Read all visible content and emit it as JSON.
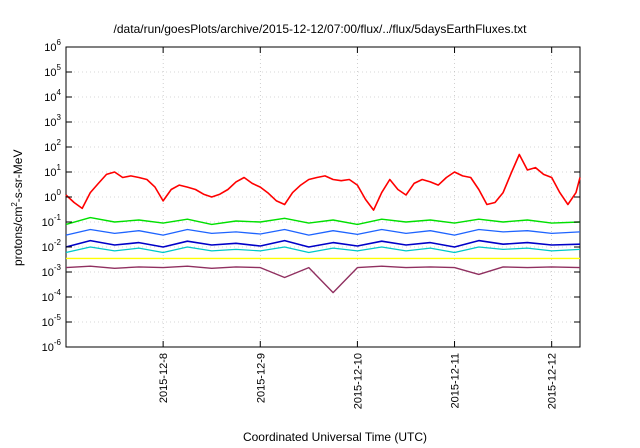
{
  "chart_data": {
    "type": "line",
    "title": "/data/run/goesPlots/archive/2015-12-12/07:00/flux/../flux/5daysEarthFluxes.txt",
    "xlabel": "Coordinated Universal Time (UTC)",
    "ylabel_prefix": "protons/cm",
    "ylabel_sup": "2",
    "ylabel_suffix": "-s-sr-MeV",
    "yscale": "log",
    "ylim": [
      1e-06,
      1000000.0
    ],
    "xlim": [
      "2015-12-07T00:00",
      "2015-12-12T07:00"
    ],
    "y_ticks": [
      {
        "value": 1e-06,
        "base": "10",
        "exp": "-6"
      },
      {
        "value": 1e-05,
        "base": "10",
        "exp": "-5"
      },
      {
        "value": 0.0001,
        "base": "10",
        "exp": "-4"
      },
      {
        "value": 0.001,
        "base": "10",
        "exp": "-3"
      },
      {
        "value": 0.01,
        "base": "10",
        "exp": "-2"
      },
      {
        "value": 0.1,
        "base": "10",
        "exp": "-1"
      },
      {
        "value": 1,
        "base": "10",
        "exp": "0"
      },
      {
        "value": 10,
        "base": "10",
        "exp": "1"
      },
      {
        "value": 100,
        "base": "10",
        "exp": "2"
      },
      {
        "value": 1000.0,
        "base": "10",
        "exp": "3"
      },
      {
        "value": 10000.0,
        "base": "10",
        "exp": "4"
      },
      {
        "value": 100000.0,
        "base": "10",
        "exp": "5"
      },
      {
        "value": 1000000.0,
        "base": "10",
        "exp": "6"
      }
    ],
    "x_ticks": [
      {
        "value": "2015-12-08T00:00",
        "label": "2015-12-8"
      },
      {
        "value": "2015-12-09T00:00",
        "label": "2015-12-9"
      },
      {
        "value": "2015-12-10T00:00",
        "label": "2015-12-10"
      },
      {
        "value": "2015-12-11T00:00",
        "label": "2015-12-11"
      },
      {
        "value": "2015-12-12T00:00",
        "label": "2015-12-12"
      }
    ],
    "grid": true,
    "series": [
      {
        "color": "#ff0000",
        "width": 1.6,
        "x": [
          "2015-12-07T00:00",
          "2015-12-07T02:00",
          "2015-12-07T04:00",
          "2015-12-07T06:00",
          "2015-12-07T08:00",
          "2015-12-07T10:00",
          "2015-12-07T12:00",
          "2015-12-07T14:00",
          "2015-12-07T16:00",
          "2015-12-07T18:00",
          "2015-12-07T20:00",
          "2015-12-07T22:00",
          "2015-12-08T00:00",
          "2015-12-08T02:00",
          "2015-12-08T04:00",
          "2015-12-08T06:00",
          "2015-12-08T08:00",
          "2015-12-08T10:00",
          "2015-12-08T12:00",
          "2015-12-08T14:00",
          "2015-12-08T16:00",
          "2015-12-08T18:00",
          "2015-12-08T20:00",
          "2015-12-08T22:00",
          "2015-12-09T00:00",
          "2015-12-09T02:00",
          "2015-12-09T04:00",
          "2015-12-09T06:00",
          "2015-12-09T08:00",
          "2015-12-09T10:00",
          "2015-12-09T12:00",
          "2015-12-09T14:00",
          "2015-12-09T16:00",
          "2015-12-09T18:00",
          "2015-12-09T20:00",
          "2015-12-09T22:00",
          "2015-12-10T00:00",
          "2015-12-10T02:00",
          "2015-12-10T04:00",
          "2015-12-10T06:00",
          "2015-12-10T08:00",
          "2015-12-10T10:00",
          "2015-12-10T12:00",
          "2015-12-10T14:00",
          "2015-12-10T16:00",
          "2015-12-10T18:00",
          "2015-12-10T20:00",
          "2015-12-10T22:00",
          "2015-12-11T00:00",
          "2015-12-11T02:00",
          "2015-12-11T04:00",
          "2015-12-11T06:00",
          "2015-12-11T08:00",
          "2015-12-11T10:00",
          "2015-12-11T12:00",
          "2015-12-11T14:00",
          "2015-12-11T16:00",
          "2015-12-11T18:00",
          "2015-12-11T20:00",
          "2015-12-11T22:00",
          "2015-12-12T00:00",
          "2015-12-12T02:00",
          "2015-12-12T04:00",
          "2015-12-12T06:00",
          "2015-12-12T07:00"
        ],
        "y": [
          1.2,
          0.6,
          0.35,
          1.5,
          3.5,
          8,
          10,
          6,
          7,
          6,
          5,
          2.5,
          0.7,
          2,
          3,
          2.5,
          2,
          1.3,
          1,
          1.3,
          2,
          4,
          6,
          3.5,
          2.5,
          1.4,
          0.7,
          0.5,
          1.5,
          3,
          5,
          6,
          7,
          5,
          4.5,
          5,
          3,
          0.8,
          0.3,
          1.5,
          5,
          2,
          1.2,
          3.5,
          5,
          4,
          3,
          6,
          10,
          7,
          6,
          2,
          0.5,
          0.6,
          1.5,
          9,
          50,
          12,
          15,
          8,
          6,
          1.5,
          0.5,
          1.5,
          6
        ]
      },
      {
        "color": "#00e000",
        "width": 1.4,
        "x": [
          "2015-12-07T00:00",
          "2015-12-07T06:00",
          "2015-12-07T12:00",
          "2015-12-07T18:00",
          "2015-12-08T00:00",
          "2015-12-08T06:00",
          "2015-12-08T12:00",
          "2015-12-08T18:00",
          "2015-12-09T00:00",
          "2015-12-09T06:00",
          "2015-12-09T12:00",
          "2015-12-09T18:00",
          "2015-12-10T00:00",
          "2015-12-10T06:00",
          "2015-12-10T12:00",
          "2015-12-10T18:00",
          "2015-12-11T00:00",
          "2015-12-11T06:00",
          "2015-12-11T12:00",
          "2015-12-11T18:00",
          "2015-12-12T00:00",
          "2015-12-12T07:00"
        ],
        "y": [
          0.08,
          0.15,
          0.1,
          0.12,
          0.09,
          0.13,
          0.08,
          0.11,
          0.1,
          0.14,
          0.09,
          0.12,
          0.08,
          0.13,
          0.1,
          0.12,
          0.09,
          0.13,
          0.1,
          0.12,
          0.09,
          0.1
        ]
      },
      {
        "color": "#00c8c8",
        "width": 1.2,
        "x": [
          "2015-12-07T00:00",
          "2015-12-07T06:00",
          "2015-12-07T12:00",
          "2015-12-07T18:00",
          "2015-12-08T00:00",
          "2015-12-08T06:00",
          "2015-12-08T12:00",
          "2015-12-08T18:00",
          "2015-12-09T00:00",
          "2015-12-09T06:00",
          "2015-12-09T12:00",
          "2015-12-09T18:00",
          "2015-12-10T00:00",
          "2015-12-10T06:00",
          "2015-12-10T12:00",
          "2015-12-10T18:00",
          "2015-12-11T00:00",
          "2015-12-11T06:00",
          "2015-12-11T12:00",
          "2015-12-11T18:00",
          "2015-12-12T00:00",
          "2015-12-12T07:00"
        ],
        "y": [
          0.006,
          0.01,
          0.007,
          0.009,
          0.006,
          0.01,
          0.007,
          0.008,
          0.007,
          0.01,
          0.006,
          0.009,
          0.007,
          0.01,
          0.007,
          0.009,
          0.006,
          0.01,
          0.008,
          0.009,
          0.007,
          0.008
        ]
      },
      {
        "color": "#1e64ff",
        "width": 1.3,
        "x": [
          "2015-12-07T00:00",
          "2015-12-07T06:00",
          "2015-12-07T12:00",
          "2015-12-07T18:00",
          "2015-12-08T00:00",
          "2015-12-08T06:00",
          "2015-12-08T12:00",
          "2015-12-08T18:00",
          "2015-12-09T00:00",
          "2015-12-09T06:00",
          "2015-12-09T12:00",
          "2015-12-09T18:00",
          "2015-12-10T00:00",
          "2015-12-10T06:00",
          "2015-12-10T12:00",
          "2015-12-10T18:00",
          "2015-12-11T00:00",
          "2015-12-11T06:00",
          "2015-12-11T12:00",
          "2015-12-11T18:00",
          "2015-12-12T00:00",
          "2015-12-12T07:00"
        ],
        "y": [
          0.03,
          0.05,
          0.035,
          0.045,
          0.03,
          0.05,
          0.035,
          0.04,
          0.033,
          0.05,
          0.03,
          0.045,
          0.032,
          0.05,
          0.035,
          0.045,
          0.03,
          0.05,
          0.04,
          0.045,
          0.035,
          0.04
        ]
      },
      {
        "color": "#0000c8",
        "width": 1.6,
        "x": [
          "2015-12-07T00:00",
          "2015-12-07T06:00",
          "2015-12-07T12:00",
          "2015-12-07T18:00",
          "2015-12-08T00:00",
          "2015-12-08T06:00",
          "2015-12-08T12:00",
          "2015-12-08T18:00",
          "2015-12-09T00:00",
          "2015-12-09T06:00",
          "2015-12-09T12:00",
          "2015-12-09T18:00",
          "2015-12-10T00:00",
          "2015-12-10T06:00",
          "2015-12-10T12:00",
          "2015-12-10T18:00",
          "2015-12-11T00:00",
          "2015-12-11T06:00",
          "2015-12-11T12:00",
          "2015-12-11T18:00",
          "2015-12-12T00:00",
          "2015-12-12T07:00"
        ],
        "y": [
          0.01,
          0.018,
          0.012,
          0.015,
          0.01,
          0.017,
          0.012,
          0.014,
          0.011,
          0.018,
          0.01,
          0.015,
          0.011,
          0.017,
          0.012,
          0.015,
          0.01,
          0.018,
          0.013,
          0.015,
          0.012,
          0.013
        ]
      },
      {
        "color": "#ffff00",
        "width": 1.4,
        "x": [
          "2015-12-07T00:00",
          "2015-12-08T00:00",
          "2015-12-09T00:00",
          "2015-12-10T00:00",
          "2015-12-11T00:00",
          "2015-12-12T00:00",
          "2015-12-12T07:00"
        ],
        "y": [
          0.0035,
          0.0035,
          0.0035,
          0.0035,
          0.0035,
          0.0035,
          0.0035
        ]
      },
      {
        "color": "#903060",
        "width": 1.4,
        "x": [
          "2015-12-07T00:00",
          "2015-12-07T06:00",
          "2015-12-07T12:00",
          "2015-12-07T18:00",
          "2015-12-08T00:00",
          "2015-12-08T06:00",
          "2015-12-08T12:00",
          "2015-12-08T18:00",
          "2015-12-09T00:00",
          "2015-12-09T06:00",
          "2015-12-09T12:00",
          "2015-12-09T18:00",
          "2015-12-10T00:00",
          "2015-12-10T06:00",
          "2015-12-10T12:00",
          "2015-12-10T18:00",
          "2015-12-11T00:00",
          "2015-12-11T06:00",
          "2015-12-11T12:00",
          "2015-12-11T18:00",
          "2015-12-12T00:00",
          "2015-12-12T07:00"
        ],
        "y": [
          0.0015,
          0.0017,
          0.0014,
          0.0016,
          0.0015,
          0.0017,
          0.0014,
          0.0016,
          0.0015,
          0.0006,
          0.0015,
          0.00015,
          0.0015,
          0.0017,
          0.0015,
          0.0016,
          0.0015,
          0.0008,
          0.0016,
          0.0015,
          0.0016,
          0.0015
        ]
      }
    ]
  }
}
